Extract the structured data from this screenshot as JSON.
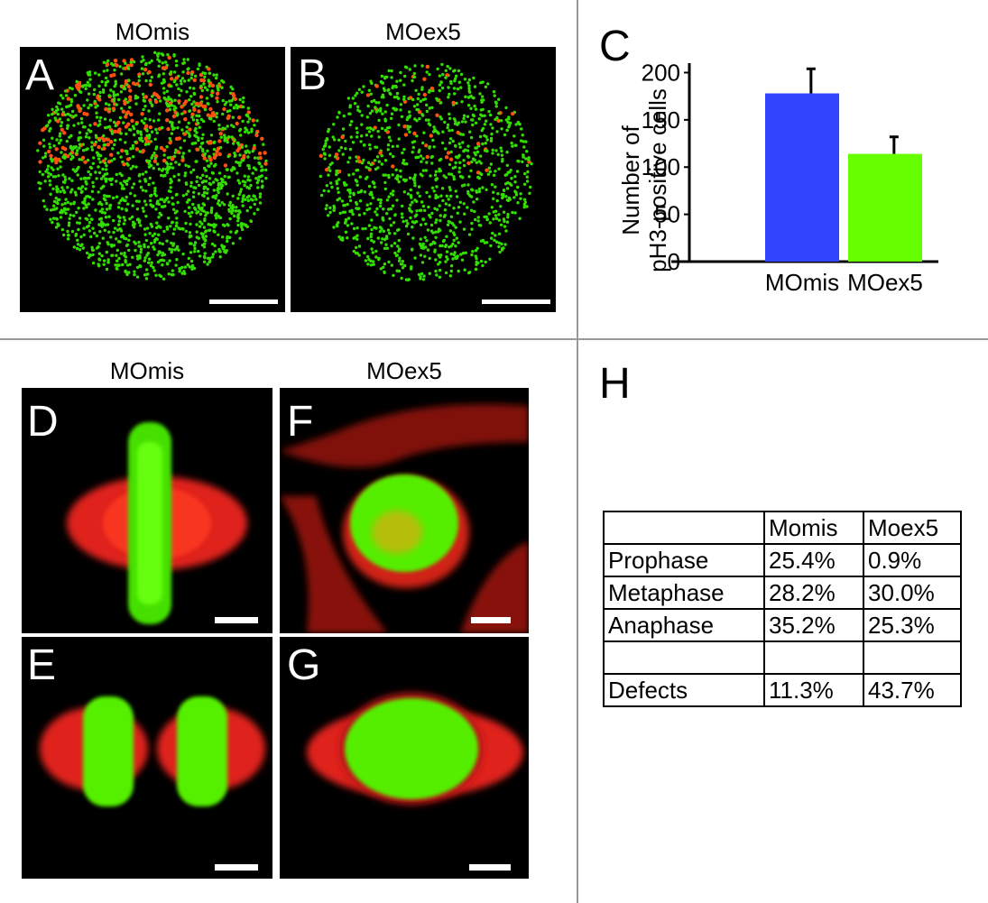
{
  "top_columns": {
    "left": "MOmis",
    "right": "MOex5"
  },
  "bottom_columns": {
    "left": "MOmis",
    "right": "MOex5"
  },
  "panel_labels": {
    "A": "A",
    "B": "B",
    "C": "C",
    "D": "D",
    "E": "E",
    "F": "F",
    "G": "G",
    "H": "H"
  },
  "chart_data": {
    "type": "bar",
    "categories": [
      "MOmis",
      "MOex5"
    ],
    "values": [
      178,
      114
    ],
    "errors": [
      26,
      18
    ],
    "colors": [
      "#3344ff",
      "#66ff00"
    ],
    "ylabel_line1": "Number of",
    "ylabel_line2": "pH3-positive cells",
    "yticks": [
      0,
      50,
      100,
      150,
      200
    ],
    "ylim": [
      0,
      210
    ]
  },
  "table": {
    "header": [
      "",
      "Momis",
      "Moex5"
    ],
    "rows": [
      [
        "Prophase",
        "25.4%",
        "0.9%"
      ],
      [
        "Metaphase",
        "28.2%",
        "30.0%"
      ],
      [
        "Anaphase",
        "35.2%",
        "25.3%"
      ],
      [
        "",
        "",
        ""
      ],
      [
        "Defects",
        "11.3%",
        "43.7%"
      ]
    ]
  }
}
